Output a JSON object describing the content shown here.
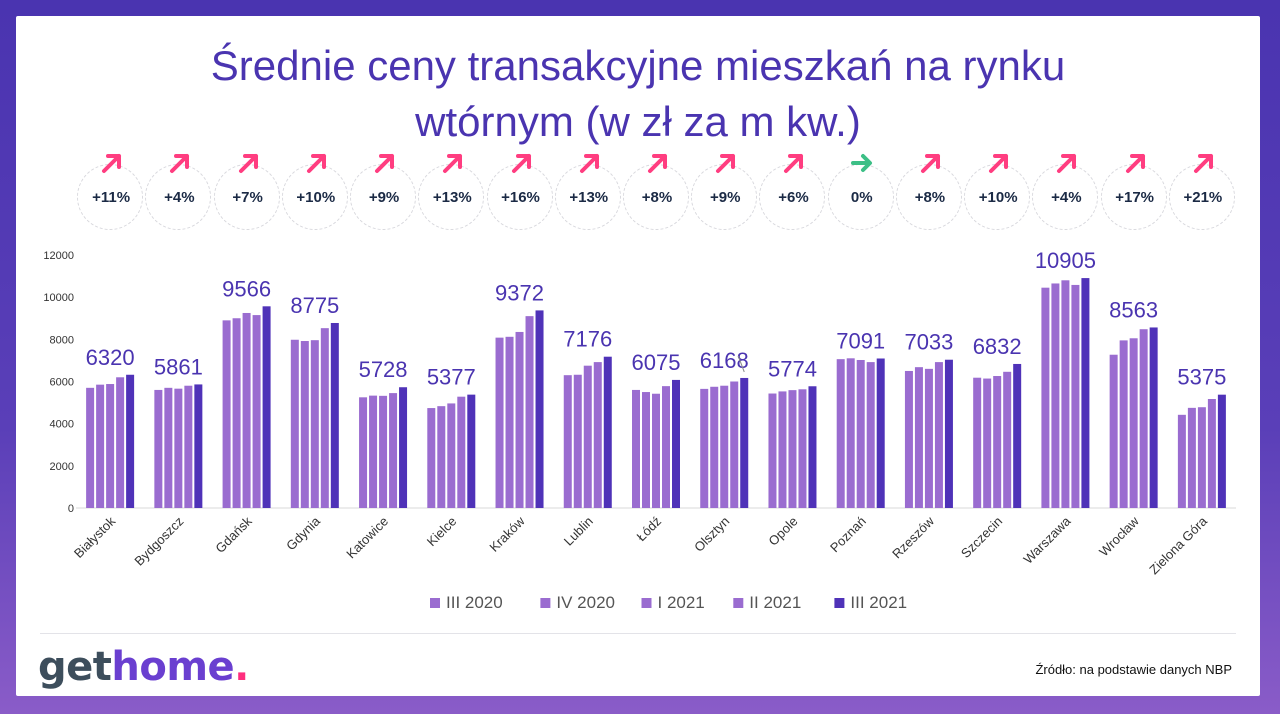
{
  "title_lines": [
    "Średnie ceny transakcyjne mieszkań na rynku",
    "wtórnym (w zł za m kw.)"
  ],
  "changes": [
    {
      "label": "+11%",
      "dir": "up"
    },
    {
      "label": "+4%",
      "dir": "up"
    },
    {
      "label": "+7%",
      "dir": "up"
    },
    {
      "label": "+10%",
      "dir": "up"
    },
    {
      "label": "+9%",
      "dir": "up"
    },
    {
      "label": "+13%",
      "dir": "up"
    },
    {
      "label": "+16%",
      "dir": "up"
    },
    {
      "label": "+13%",
      "dir": "up"
    },
    {
      "label": "+8%",
      "dir": "up"
    },
    {
      "label": "+9%",
      "dir": "up"
    },
    {
      "label": "+6%",
      "dir": "up"
    },
    {
      "label": "0%",
      "dir": "flat"
    },
    {
      "label": "+8%",
      "dir": "up"
    },
    {
      "label": "+10%",
      "dir": "up"
    },
    {
      "label": "+4%",
      "dir": "up"
    },
    {
      "label": "+17%",
      "dir": "up"
    },
    {
      "label": "+21%",
      "dir": "up"
    }
  ],
  "colors": {
    "accent": "#4a34b0",
    "up_arrow": "#ff3d80",
    "flat_arrow": "#3cbf86",
    "bar_light": "#9a6cd0",
    "bar_dark": "#4f32b8"
  },
  "chart_data": {
    "type": "bar",
    "ylim": [
      0,
      12000
    ],
    "yticks": [
      0,
      2000,
      4000,
      6000,
      8000,
      10000,
      12000
    ],
    "categories": [
      "Białystok",
      "Bydgoszcz",
      "Gdańsk",
      "Gdynia",
      "Katowice",
      "Kielce",
      "Kraków",
      "Lublin",
      "Łódź",
      "Olsztyn",
      "Opole",
      "Poznań",
      "Rzeszów",
      "Szczecin",
      "Warszawa",
      "Wrocław",
      "Zielona Góra"
    ],
    "series": [
      {
        "name": "III 2020",
        "values": [
          5700,
          5600,
          8900,
          7980,
          5250,
          4740,
          8080,
          6300,
          5600,
          5650,
          5430,
          7060,
          6500,
          6180,
          10450,
          7270,
          4420
        ]
      },
      {
        "name": "IV 2020",
        "values": [
          5850,
          5700,
          9000,
          7920,
          5330,
          4830,
          8120,
          6320,
          5500,
          5750,
          5530,
          7100,
          6680,
          6140,
          10650,
          7950,
          4750
        ]
      },
      {
        "name": "I 2021",
        "values": [
          5880,
          5660,
          9250,
          7960,
          5320,
          4960,
          8350,
          6750,
          5420,
          5800,
          5590,
          7020,
          6600,
          6260,
          10800,
          8050,
          4780
        ]
      },
      {
        "name": "II 2021",
        "values": [
          6200,
          5800,
          9150,
          8530,
          5450,
          5280,
          9100,
          6920,
          5780,
          6000,
          5630,
          6920,
          6920,
          6460,
          10580,
          8480,
          5170
        ]
      },
      {
        "name": "III 2021",
        "values": [
          6320,
          5861,
          9566,
          8775,
          5728,
          5377,
          9372,
          7176,
          6075,
          6168,
          5774,
          7091,
          7033,
          6832,
          10905,
          8563,
          5375
        ]
      }
    ],
    "data_labels": [
      "6320",
      "5861",
      "9566",
      "8775",
      "5728",
      "5377",
      "9372",
      "7176",
      "6075",
      "6168",
      "5774",
      "7091",
      "7033",
      "6832",
      "10905",
      "8563",
      "5375"
    ]
  },
  "footer": {
    "logo_part1": "get",
    "logo_part2": "home",
    "logo_dot": ".",
    "source": "Źródło: na podstawie danych NBP"
  }
}
